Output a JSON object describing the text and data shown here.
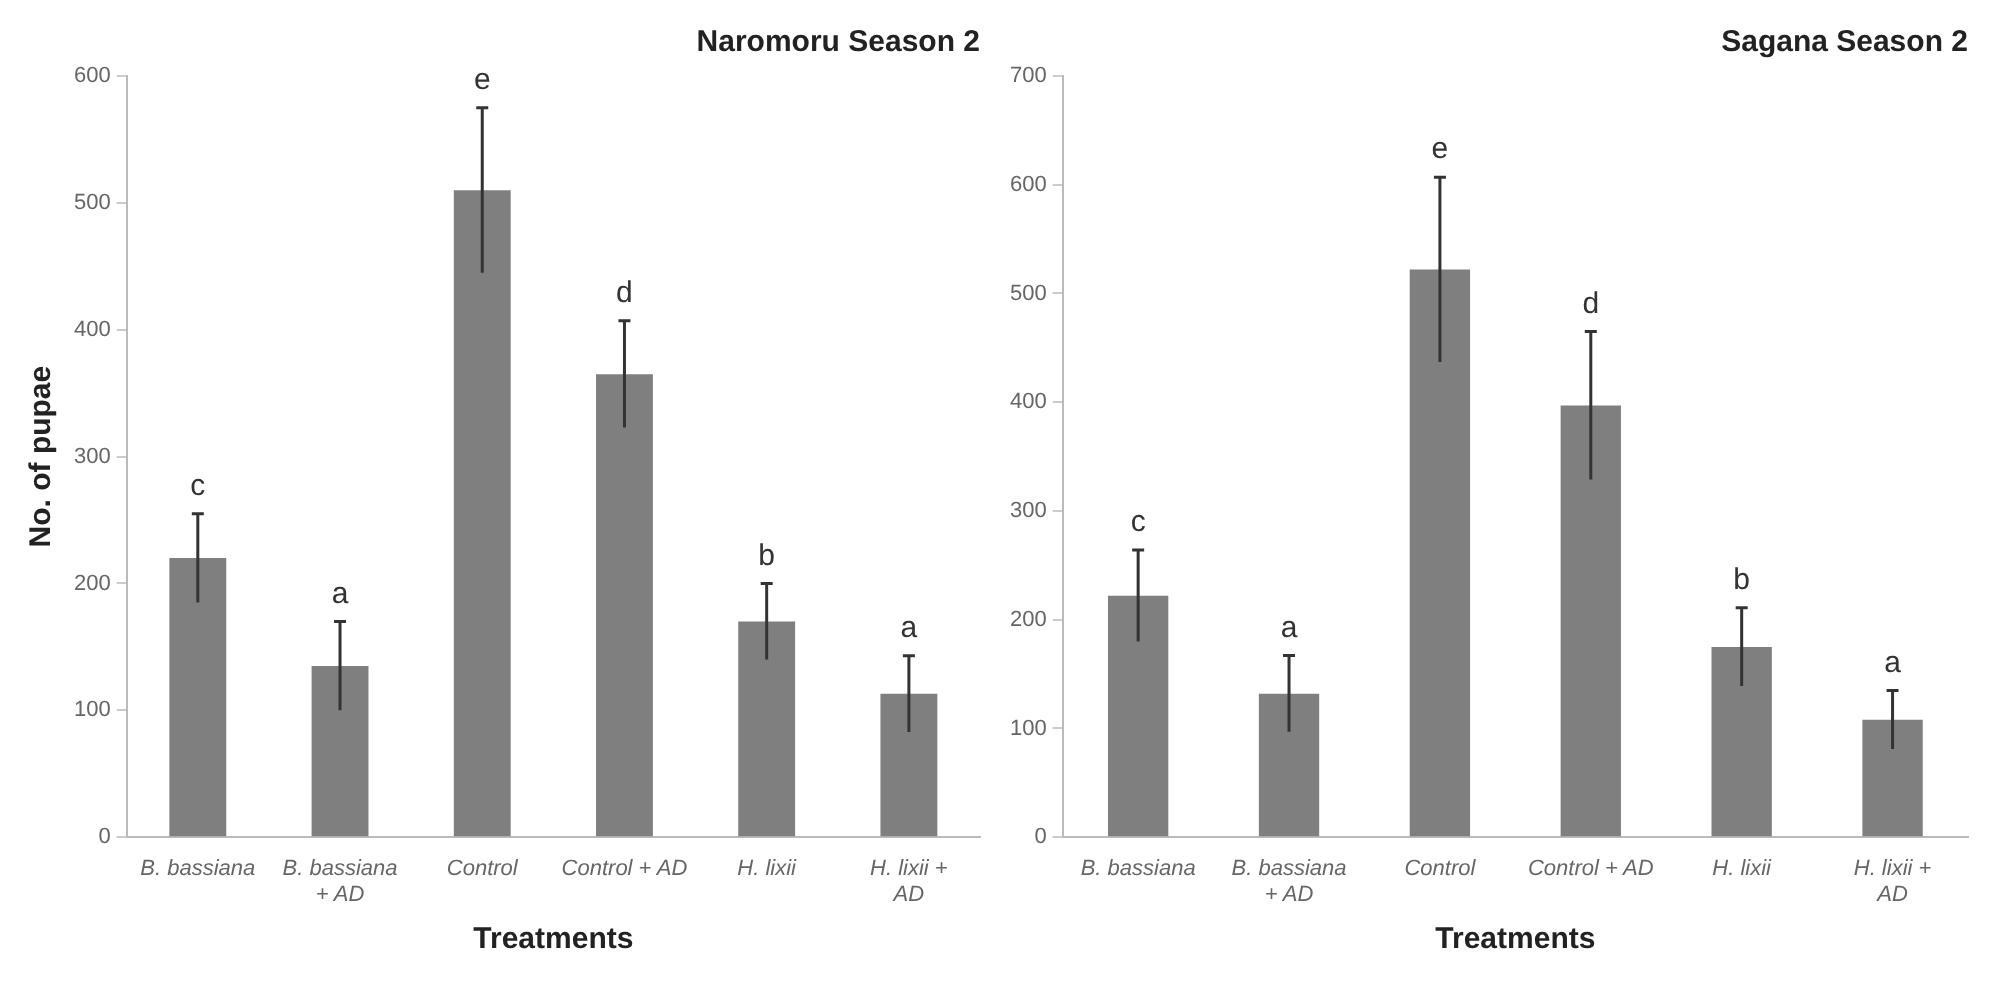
{
  "chart_data": [
    {
      "type": "bar",
      "title": "Naromoru Season 2",
      "xlabel": "Treatments",
      "ylabel": "No. of pupae",
      "categories": [
        "B. bassiana",
        "B. bassiana + AD",
        "Control",
        "Control + AD",
        "H. lixii",
        "H. lixii + AD"
      ],
      "values": [
        220,
        135,
        510,
        365,
        170,
        113
      ],
      "errors": [
        35,
        35,
        65,
        42,
        30,
        30
      ],
      "color": "#7f7f7f",
      "ylim": [
        0,
        600
      ],
      "yticks": [
        0,
        100,
        200,
        300,
        400,
        500,
        600
      ],
      "grid": false,
      "annotations": [
        {
          "text": "c",
          "x": "B. bassiana",
          "y": 255
        },
        {
          "text": "a",
          "x": "B. bassiana + AD",
          "y": 170
        },
        {
          "text": "e",
          "x": "Control",
          "y": 575
        },
        {
          "text": "d",
          "x": "Control + AD",
          "y": 407
        },
        {
          "text": "b",
          "x": "H. lixii",
          "y": 200
        },
        {
          "text": "a",
          "x": "H. lixii + AD",
          "y": 143
        }
      ]
    },
    {
      "type": "bar",
      "title": "Sagana Season 2",
      "xlabel": "Treatments",
      "categories": [
        "B. bassiana",
        "B. bassiana + AD",
        "Control",
        "Control + AD",
        "H. lixii",
        "H. lixii + AD"
      ],
      "values": [
        222,
        132,
        522,
        397,
        175,
        108
      ],
      "errors": [
        42,
        35,
        85,
        68,
        36,
        27
      ],
      "color": "#7f7f7f",
      "ylim": [
        0,
        700
      ],
      "yticks": [
        0,
        100,
        200,
        300,
        400,
        500,
        600,
        700
      ],
      "grid": false,
      "annotations": [
        {
          "text": "c",
          "x": "B. bassiana",
          "y": 264
        },
        {
          "text": "a",
          "x": "B. bassiana + AD",
          "y": 167
        },
        {
          "text": "e",
          "x": "Control",
          "y": 607
        },
        {
          "text": "d",
          "x": "Control + AD",
          "y": 465
        },
        {
          "text": "b",
          "x": "H. lixii",
          "y": 211
        },
        {
          "text": "a",
          "x": "H. lixii + AD",
          "y": 135
        }
      ]
    }
  ]
}
